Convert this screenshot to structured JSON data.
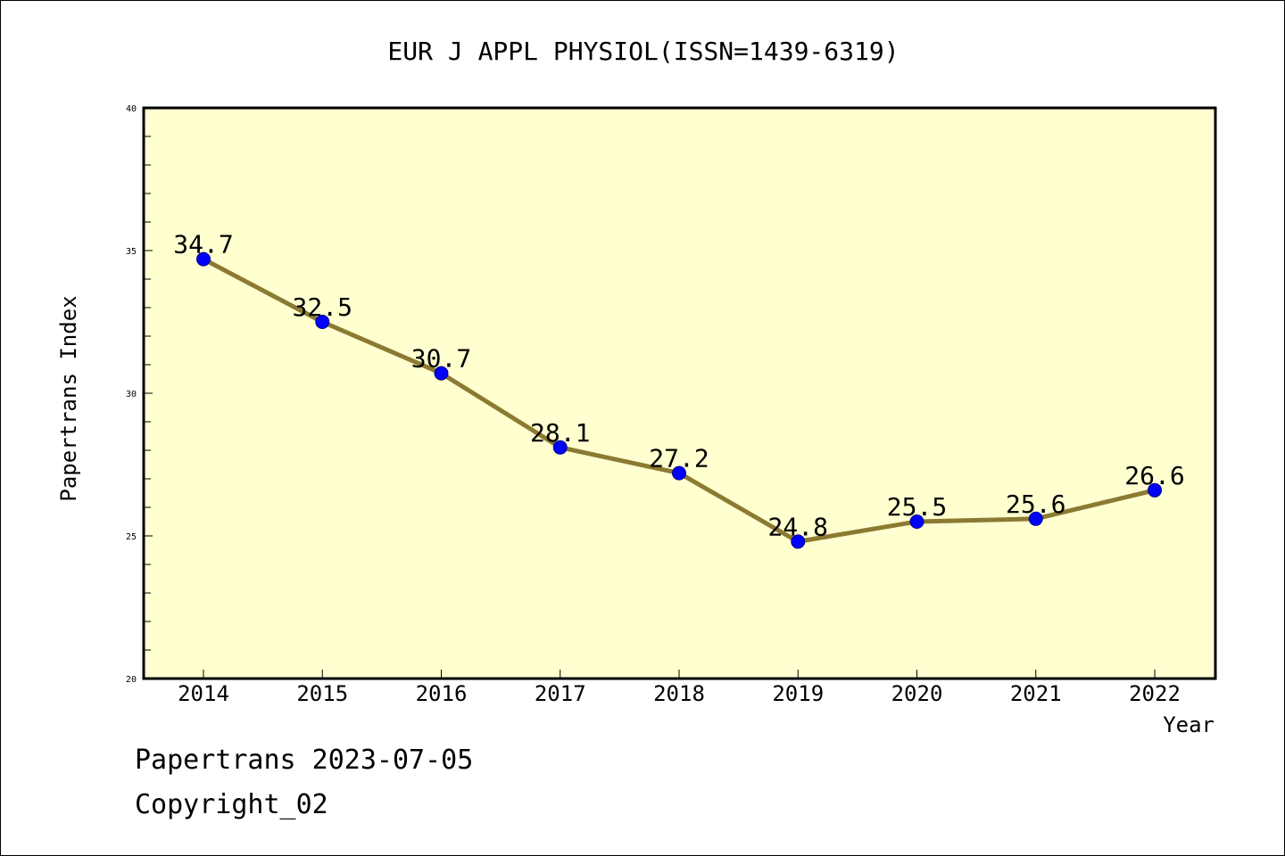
{
  "chart_data": {
    "type": "line",
    "title": "EUR J APPL PHYSIOL(ISSN=1439-6319)",
    "xlabel": "Year",
    "ylabel": "Papertrans Index",
    "categories": [
      "2014",
      "2015",
      "2016",
      "2017",
      "2018",
      "2019",
      "2020",
      "2021",
      "2022"
    ],
    "values": [
      34.7,
      32.5,
      30.7,
      28.1,
      27.2,
      24.8,
      25.5,
      25.6,
      26.6
    ],
    "data_labels": [
      "34.7",
      "32.5",
      "30.7",
      "28.1",
      "27.2",
      "24.8",
      "25.5",
      "25.6",
      "26.6"
    ],
    "ylim": [
      20,
      40
    ],
    "yticks": [
      "20",
      "25",
      "30",
      "35",
      "40"
    ],
    "grid": false,
    "legend": "none",
    "colors": {
      "plot_background": "#FFFFD0",
      "line": "#8B7A32",
      "marker": "#0000FF"
    }
  },
  "footer": {
    "date_line": "Papertrans 2023-07-05",
    "copyright": "Copyright_02"
  }
}
